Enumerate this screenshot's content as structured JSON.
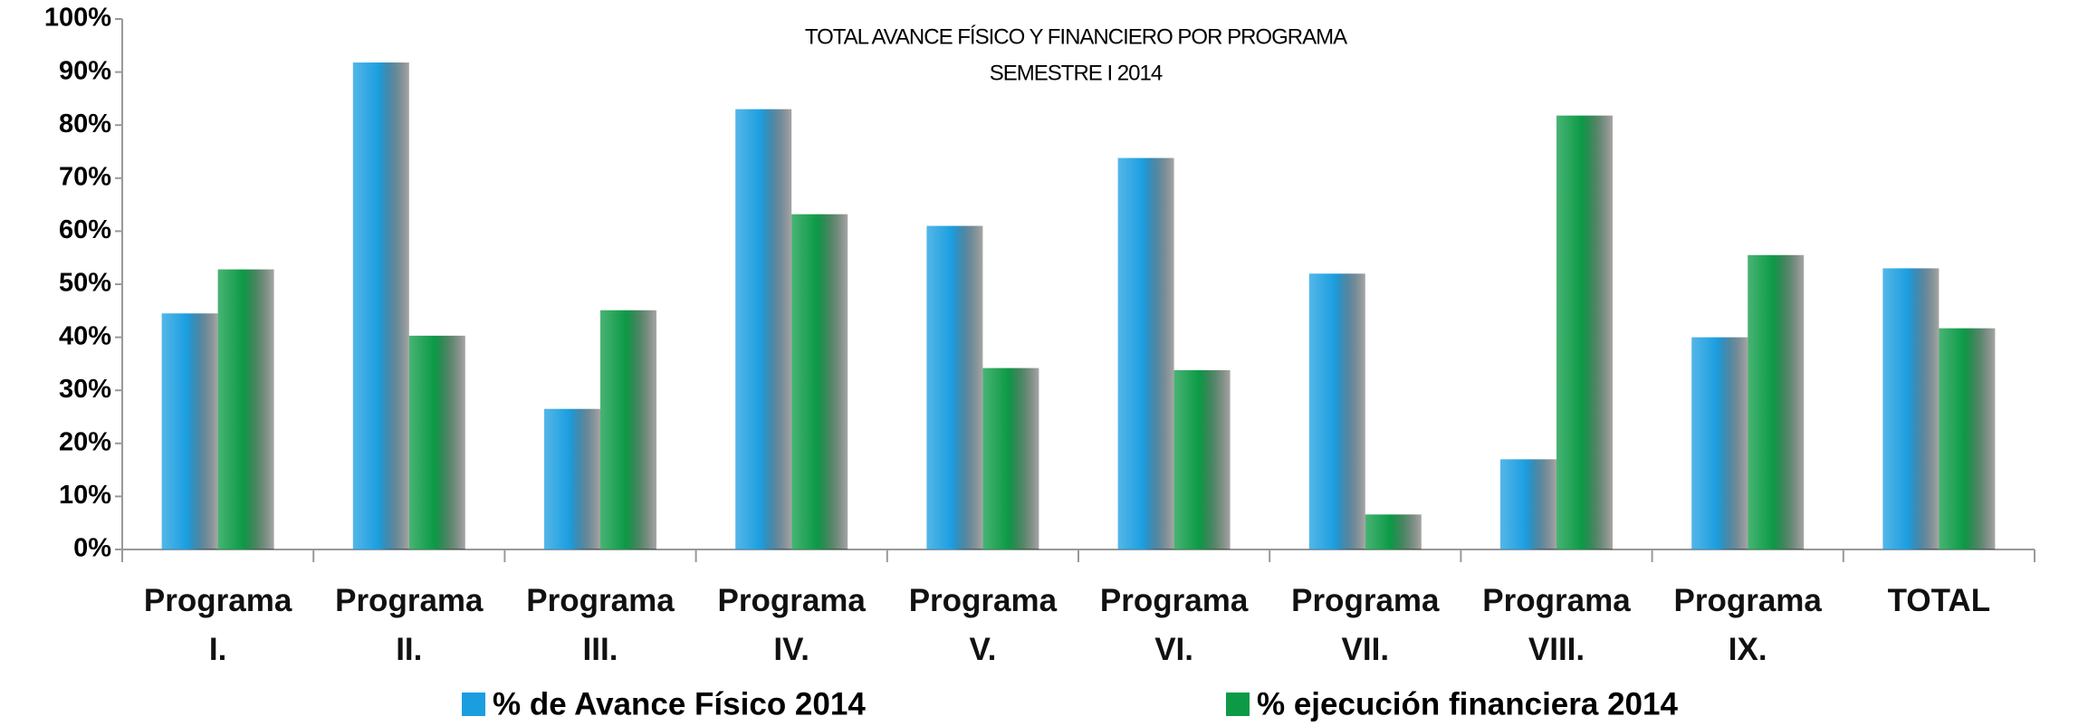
{
  "chart_data": {
    "type": "bar",
    "title": "TOTAL AVANCE FÍSICO Y FINANCIERO POR PROGRAMA",
    "subtitle": "SEMESTRE I 2014",
    "categories": [
      "Programa I.",
      "Programa II.",
      "Programa III.",
      "Programa IV.",
      "Programa V.",
      "Programa VI.",
      "Programa VII.",
      "Programa VIII.",
      "Programa IX.",
      "TOTAL"
    ],
    "series": [
      {
        "name": "% de Avance Físico 2014",
        "color": "#1b9ee0",
        "values": [
          44.5,
          91.8,
          26.5,
          83,
          61,
          73.8,
          52,
          17,
          40,
          53
        ]
      },
      {
        "name": "% ejecución financiera 2014",
        "color": "#0c9a46",
        "values": [
          52.8,
          40.3,
          45.1,
          63.2,
          34.2,
          33.8,
          6.6,
          81.8,
          55.5,
          41.7
        ]
      }
    ],
    "ylim": [
      0,
      100
    ],
    "yticks": [
      {
        "value": 0,
        "label": "0%"
      },
      {
        "value": 10,
        "label": "10%"
      },
      {
        "value": 20,
        "label": "20%"
      },
      {
        "value": 30,
        "label": "30%"
      },
      {
        "value": 40,
        "label": "40%"
      },
      {
        "value": 50,
        "label": "50%"
      },
      {
        "value": 60,
        "label": "60%"
      },
      {
        "value": 70,
        "label": "70%"
      },
      {
        "value": 80,
        "label": "80%"
      },
      {
        "value": 90,
        "label": "90%"
      },
      {
        "value": 100,
        "label": "100%"
      }
    ],
    "legend": "bottom"
  }
}
